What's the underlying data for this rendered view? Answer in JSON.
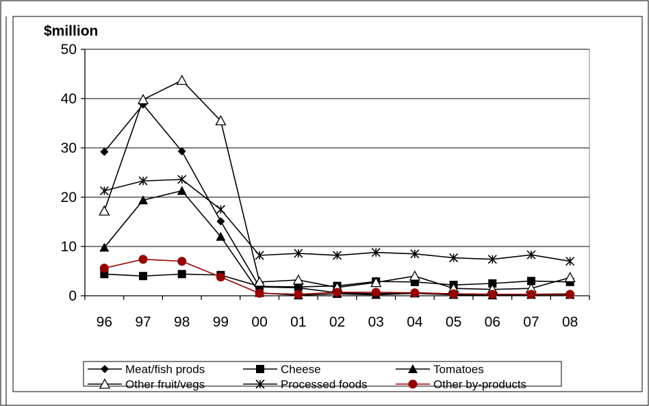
{
  "chart_data": {
    "type": "line",
    "ylabel": "$million",
    "ylim": [
      0,
      50
    ],
    "yticks": [
      0,
      10,
      20,
      30,
      40,
      50
    ],
    "categories": [
      "96",
      "97",
      "98",
      "99",
      "00",
      "01",
      "02",
      "03",
      "04",
      "05",
      "06",
      "07",
      "08"
    ],
    "grid": "horizontal",
    "legend_position": "bottom",
    "series": [
      {
        "name": "Meat/fish prods",
        "marker": "diamond",
        "color": "#000000",
        "values": [
          29.2,
          38.8,
          29.3,
          15.1,
          1.8,
          1.6,
          0.6,
          0.4,
          0.6,
          0.4,
          0.3,
          0.3,
          0.4
        ]
      },
      {
        "name": "Cheese",
        "marker": "square",
        "color": "#000000",
        "values": [
          4.4,
          4.0,
          4.4,
          4.2,
          1.9,
          1.8,
          2.0,
          2.9,
          2.8,
          2.2,
          2.5,
          3.0,
          2.8
        ]
      },
      {
        "name": "Tomatoes",
        "marker": "triangle",
        "color": "#000000",
        "values": [
          9.8,
          19.4,
          21.3,
          12.0,
          0.6,
          0.1,
          0.4,
          0.2,
          0.5,
          0.2,
          0.1,
          0.2,
          0.2
        ]
      },
      {
        "name": "Other fruit/vegs",
        "marker": "triangle-open",
        "color": "#000000",
        "values": [
          17.2,
          39.8,
          43.7,
          35.5,
          2.8,
          3.2,
          1.7,
          2.7,
          4.0,
          1.5,
          1.3,
          1.5,
          3.7
        ]
      },
      {
        "name": "Processed foods",
        "marker": "asterisk",
        "color": "#000000",
        "values": [
          21.3,
          23.3,
          23.6,
          17.5,
          8.2,
          8.6,
          8.2,
          8.8,
          8.5,
          7.7,
          7.4,
          8.3,
          7.0
        ]
      },
      {
        "name": "Other by-products",
        "marker": "circle",
        "color": "#990000",
        "values": [
          5.6,
          7.4,
          7.0,
          3.8,
          0.5,
          0.3,
          0.7,
          0.7,
          0.6,
          0.4,
          0.3,
          0.3,
          0.3
        ]
      }
    ]
  }
}
